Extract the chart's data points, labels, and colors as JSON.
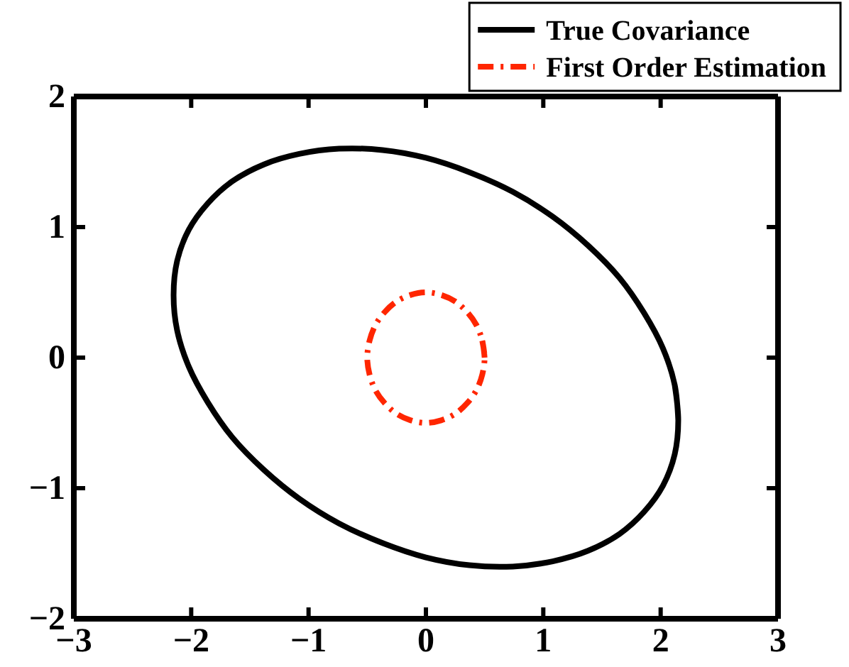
{
  "chart_data": {
    "type": "line",
    "xlim": [
      -3,
      3
    ],
    "ylim": [
      -2,
      2
    ],
    "xticks": [
      {
        "value": -3,
        "label": "−3"
      },
      {
        "value": -2,
        "label": "−2"
      },
      {
        "value": -1,
        "label": "−1"
      },
      0,
      1,
      2,
      3
    ],
    "yticks": [
      {
        "value": -2,
        "label": "−2"
      },
      {
        "value": -1,
        "label": "−1"
      },
      0,
      1,
      2
    ],
    "legend": "top right",
    "series": [
      {
        "name": "True Covariance",
        "color": "#000000",
        "line_style": "solid",
        "x": [
          2.15,
          2.12,
          2.02,
          1.86,
          1.65,
          1.38,
          1.08,
          0.74,
          0.37,
          0,
          -0.37,
          -0.74,
          -1.08,
          -1.38,
          -1.65,
          -1.86,
          -2.02,
          -2.12,
          -2.15,
          -2.12,
          -2.02,
          -1.86,
          -1.65,
          -1.38,
          -1.08,
          -0.74,
          -0.37,
          0,
          0.37,
          0.74,
          1.08,
          1.38,
          1.65,
          1.86,
          2.02,
          2.12,
          2.15,
          2.12
        ],
        "values": [
          -0.48,
          -0.21,
          0.07,
          0.34,
          0.61,
          0.86,
          1.08,
          1.27,
          1.42,
          1.53,
          1.59,
          1.6,
          1.56,
          1.48,
          1.35,
          1.18,
          0.98,
          0.74,
          0.48,
          0.21,
          -0.07,
          -0.34,
          -0.61,
          -0.86,
          -1.08,
          -1.27,
          -1.42,
          -1.53,
          -1.59,
          -1.6,
          -1.56,
          -1.48,
          -1.35,
          -1.18,
          -0.98,
          -0.74,
          -0.48,
          -0.21
        ]
      },
      {
        "name": "First Order Estimation",
        "color": "#ff2600",
        "line_style": "dashdot",
        "x": [
          0.5,
          0.48,
          0.43,
          0.35,
          0.25,
          0.13,
          0,
          -0.13,
          -0.25,
          -0.35,
          -0.43,
          -0.48,
          -0.5,
          -0.48,
          -0.43,
          -0.35,
          -0.25,
          -0.13,
          0,
          0.13,
          0.25,
          0.35,
          0.43,
          0.48,
          0.5,
          0.48
        ],
        "values": [
          0,
          0.13,
          0.25,
          0.35,
          0.43,
          0.48,
          0.5,
          0.48,
          0.43,
          0.35,
          0.25,
          0.13,
          0,
          -0.13,
          -0.25,
          -0.35,
          -0.43,
          -0.48,
          -0.5,
          -0.48,
          -0.43,
          -0.35,
          -0.25,
          -0.13,
          0,
          0.13
        ]
      }
    ]
  }
}
